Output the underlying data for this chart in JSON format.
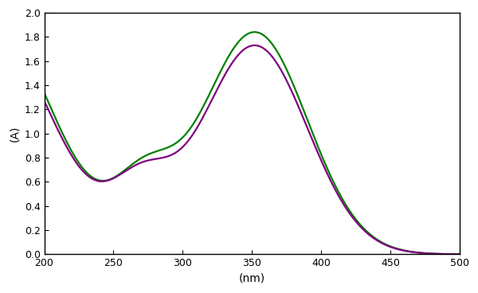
{
  "title": "",
  "xlabel": "(nm)",
  "ylabel": "(A)",
  "xlim": [
    200,
    500
  ],
  "ylim": [
    0,
    2
  ],
  "xticks": [
    200,
    250,
    300,
    350,
    400,
    450,
    500
  ],
  "yticks": [
    0,
    0.2,
    0.4,
    0.6,
    0.8,
    1.0,
    1.2,
    1.4,
    1.6,
    1.8,
    2.0
  ],
  "green_color": "#008000",
  "purple_color": "#800080",
  "linewidth": 1.6,
  "background_color": "#ffffff",
  "figsize": [
    6.0,
    3.68
  ],
  "dpi": 100
}
